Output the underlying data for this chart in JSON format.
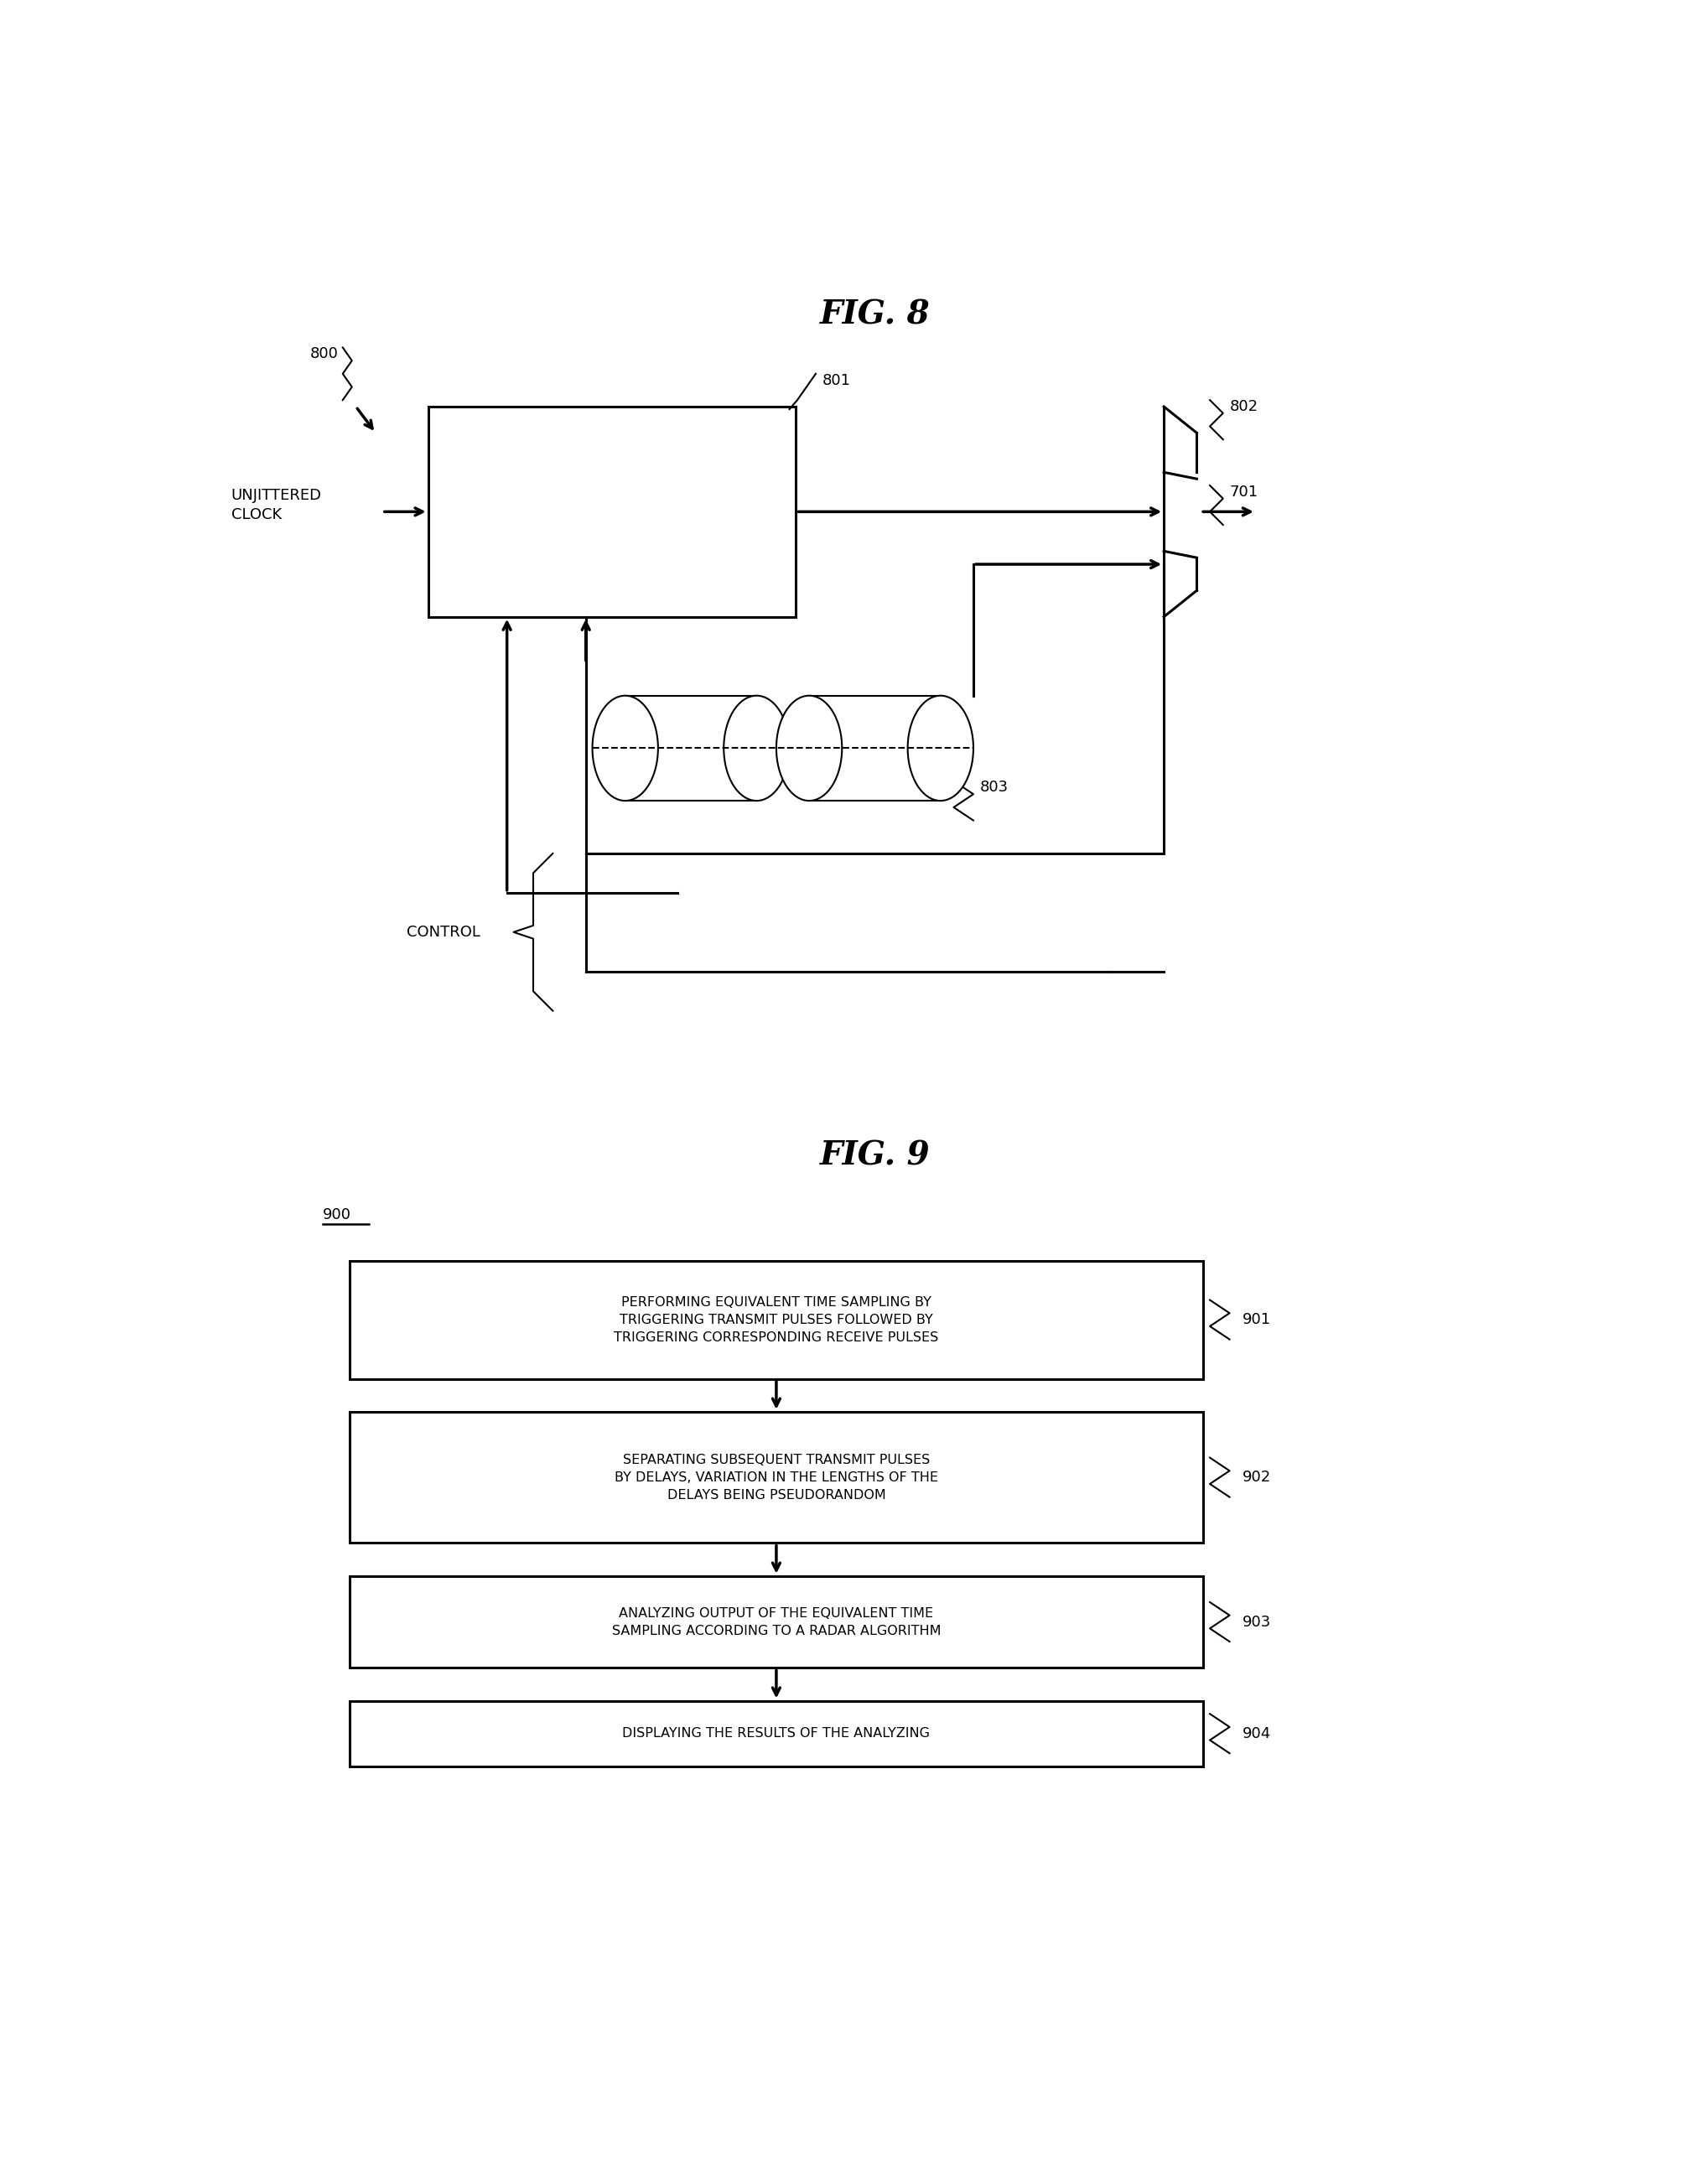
{
  "fig_width": 20.36,
  "fig_height": 26.05,
  "bg_color": "#ffffff",
  "fig8_title": "FIG. 8",
  "fig9_title": "FIG. 9",
  "label_800": "800",
  "label_801": "801",
  "label_802": "802",
  "label_803": "803",
  "label_701": "701",
  "label_900": "900",
  "label_901": "901",
  "label_902": "902",
  "label_903": "903",
  "label_904": "904",
  "text_unjittered_clock": "UNJITTERED\nCLOCK",
  "text_control": "CONTROL",
  "box901_text": "PERFORMING EQUIVALENT TIME SAMPLING BY\nTRIGGERING TRANSMIT PULSES FOLLOWED BY\nTRIGGERING CORRESPONDING RECEIVE PULSES",
  "box902_text": "SEPARATING SUBSEQUENT TRANSMIT PULSES\nBY DELAYS, VARIATION IN THE LENGTHS OF THE\nDELAYS BEING PSEUDORANDOM",
  "box903_text": "ANALYZING OUTPUT OF THE EQUIVALENT TIME\nSAMPLING ACCORDING TO A RADAR ALGORITHM",
  "box904_text": "DISPLAYING THE RESULTS OF THE ANALYZING",
  "line_color": "#000000",
  "font_color": "#000000"
}
